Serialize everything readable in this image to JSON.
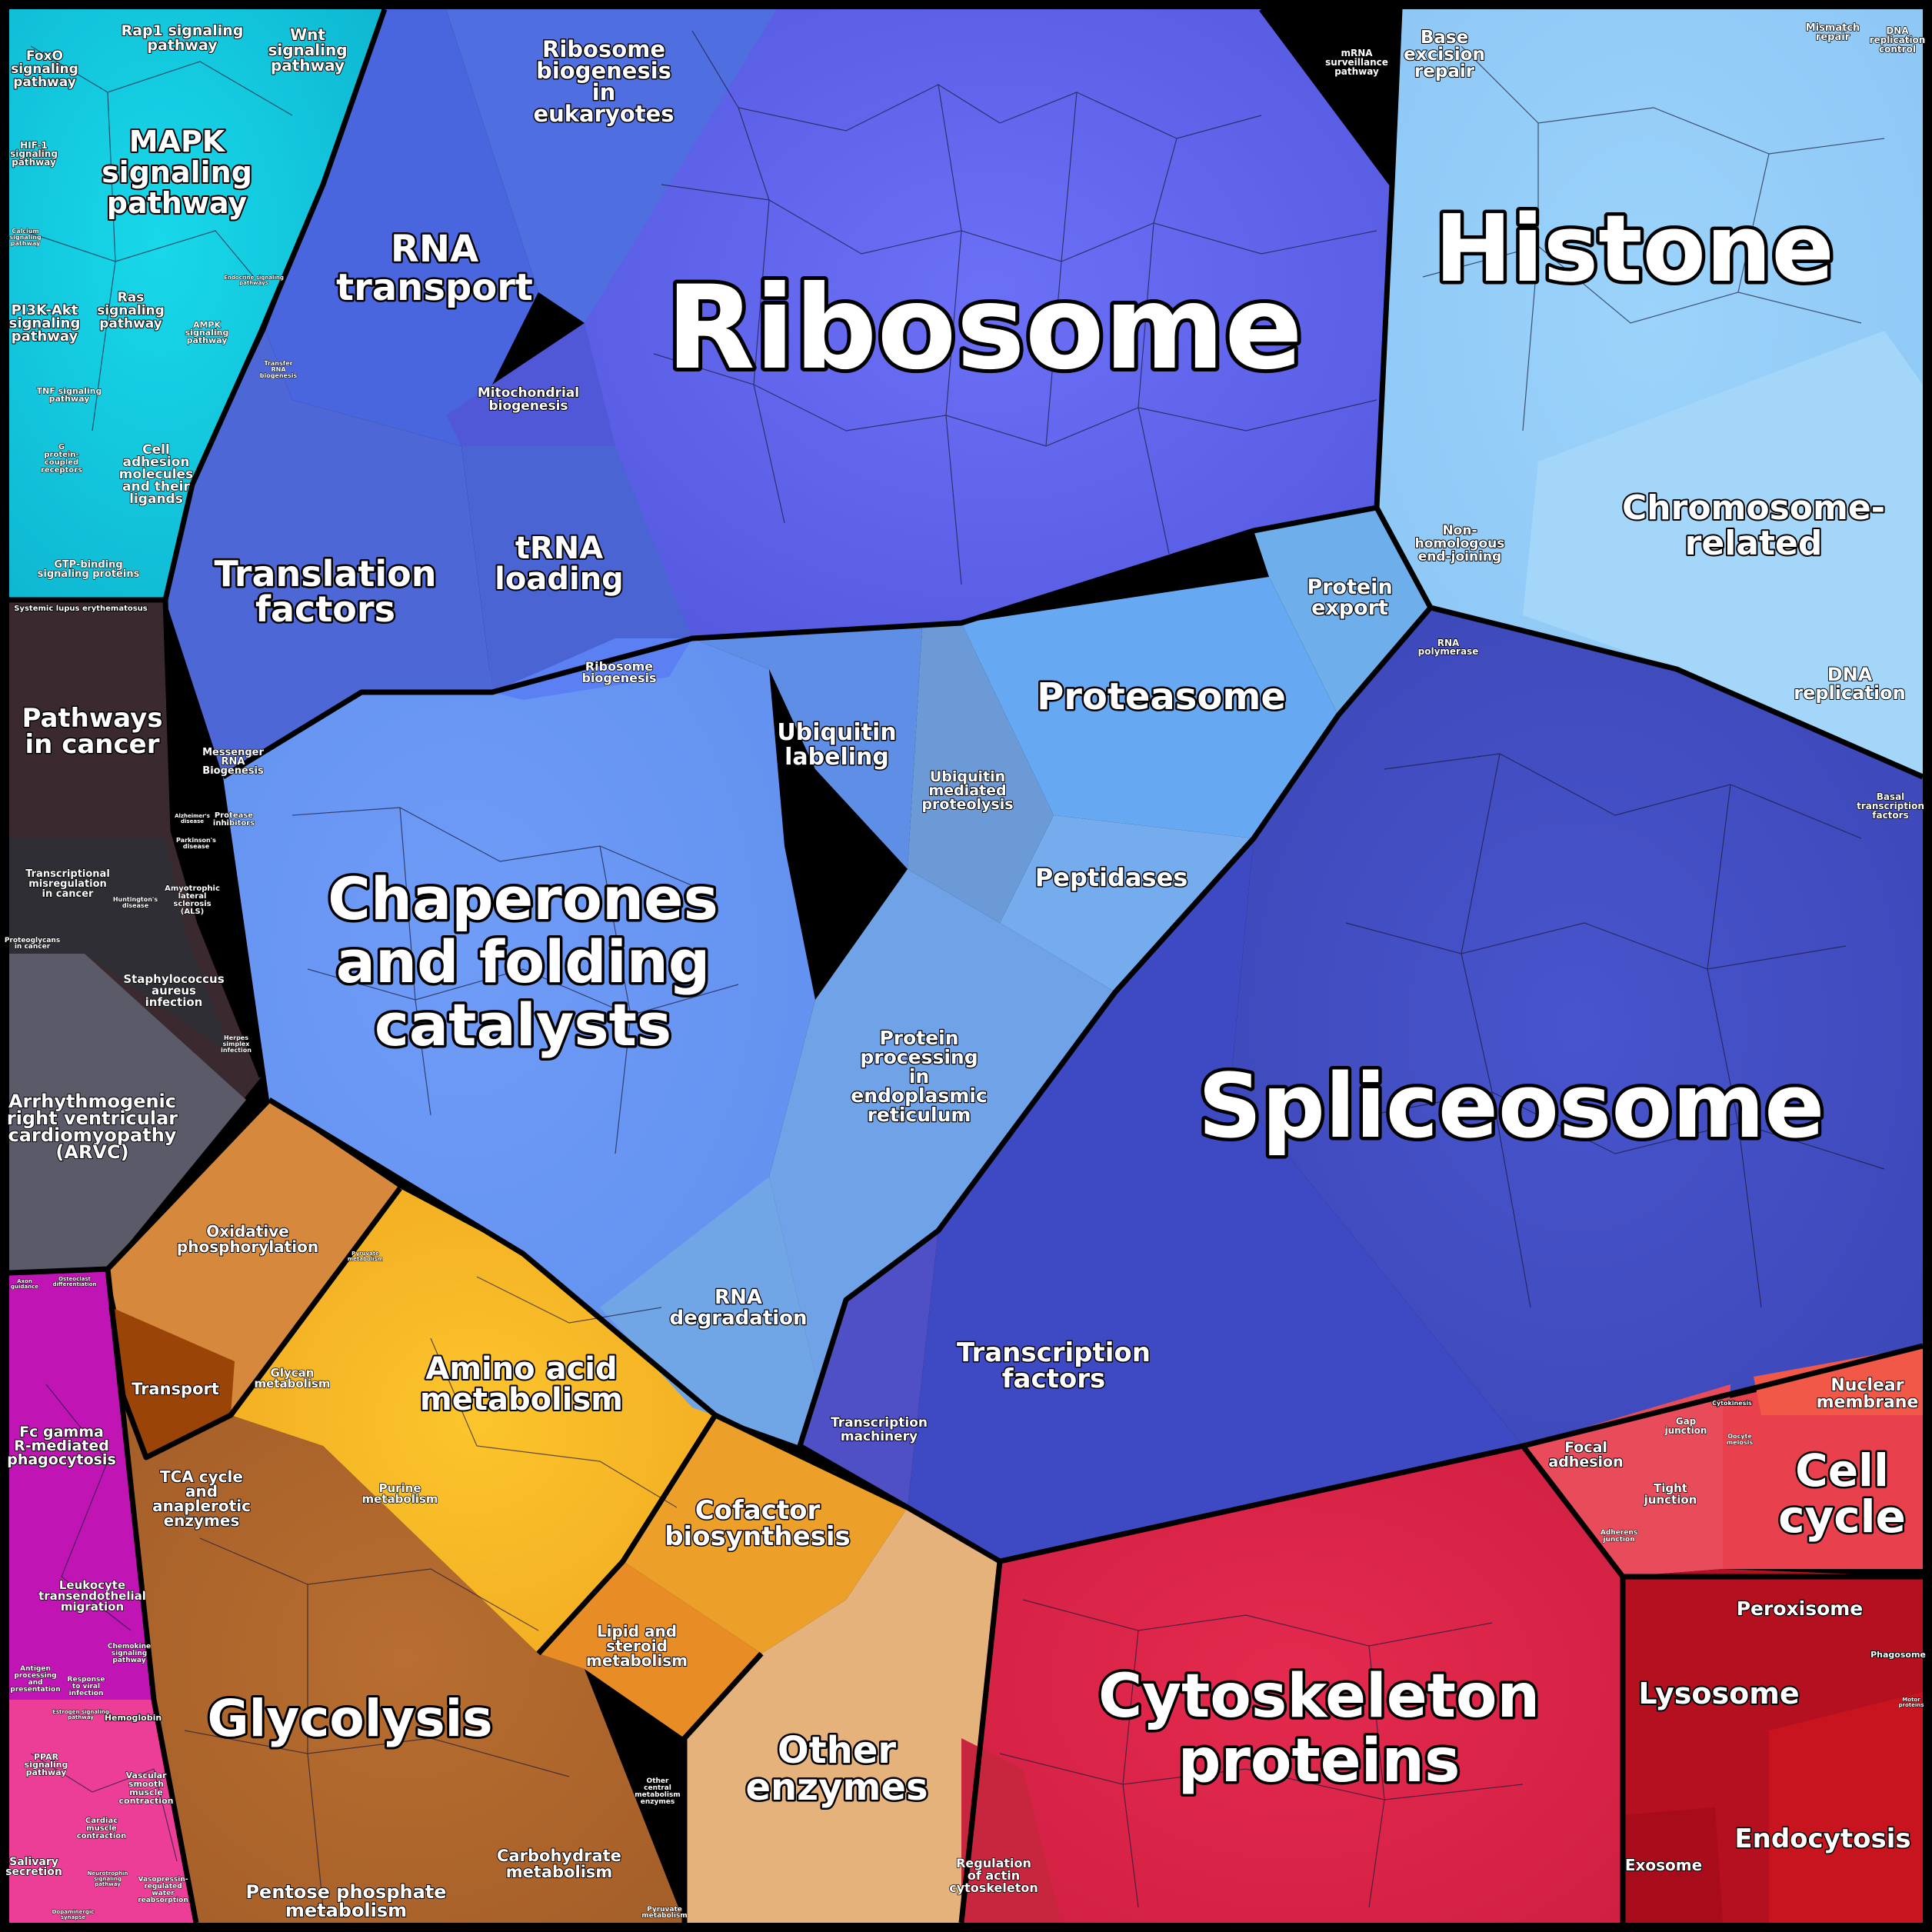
{
  "diagram": {
    "type": "voronoi-treemap",
    "labels": {
      "ribosome": "Ribosome",
      "histone": "Histone",
      "spliceosome": "Spliceosome",
      "chaperones": [
        "Chaperones",
        "and folding",
        "catalysts"
      ],
      "cytoskeleton": [
        "Cytoskeleton",
        "proteins"
      ],
      "glycolysis": "Glycolysis",
      "mapk": [
        "MAPK",
        "signaling",
        "pathway"
      ],
      "rna_transport": [
        "RNA",
        "transport"
      ],
      "translation_factors": [
        "Translation",
        "factors"
      ],
      "trna_loading": [
        "tRNA",
        "loading"
      ],
      "proteasome": "Proteasome",
      "peptidases": "Peptidases",
      "chromosome_related": [
        "Chromosome-",
        "related"
      ],
      "amino_acid_metabolism": [
        "Amino acid",
        "metabolism"
      ],
      "cofactor_biosynthesis": [
        "Cofactor",
        "biosynthesis"
      ],
      "other_enzymes": [
        "Other",
        "enzymes"
      ],
      "cell_cycle": [
        "Cell",
        "cycle"
      ],
      "lysosome": "Lysosome",
      "endocytosis": "Endocytosis",
      "peroxisome": "Peroxisome",
      "exosome": "Exosome",
      "nuclear_membrane": [
        "Nuclear",
        "membrane"
      ],
      "transcription_factors": [
        "Transcription",
        "factors"
      ],
      "transcription_machinery": [
        "Transcription",
        "machinery"
      ],
      "rna_degradation": [
        "RNA",
        "degradation"
      ],
      "protein_processing_er": [
        "Protein",
        "processing",
        "in",
        "endoplasmic",
        "reticulum"
      ],
      "ubiquitin_labeling": [
        "Ubiquitin",
        "labeling"
      ],
      "ubiquitin_mediated_proteolysis": [
        "Ubiquitin",
        "mediated",
        "proteolysis"
      ],
      "protein_export": [
        "Protein",
        "export"
      ],
      "ribosome_biogenesis_euk": [
        "Ribosome",
        "biogenesis",
        "in",
        "eukaryotes"
      ],
      "mitochondrial_biogenesis": [
        "Mitochondrial",
        "biogenesis"
      ],
      "ribosome_biogenesis": [
        "Ribosome",
        "biogenesis"
      ],
      "messenger_rna_biogenesis": [
        "Messenger",
        "RNA",
        "Biogenesis"
      ],
      "base_excision_repair": [
        "Base",
        "excision",
        "repair"
      ],
      "non_homologous_end_joining": [
        "Non-",
        "homologous",
        "end-joining"
      ],
      "dna_replication": [
        "DNA",
        "replication"
      ],
      "mismatch_repair": [
        "Mismatch",
        "repair"
      ],
      "dna_replication_control": [
        "DNA",
        "replication",
        "control"
      ],
      "mrna_surveillance": [
        "mRNA",
        "surveillance",
        "pathway"
      ],
      "rna_polymerase": [
        "RNA",
        "polymerase"
      ],
      "basal_transcription_factors": [
        "Basal",
        "transcription",
        "factors"
      ],
      "pathways_in_cancer": [
        "Pathways",
        "in cancer"
      ],
      "transcriptional_misregulation": [
        "Transcriptional",
        "misregulation",
        "in cancer"
      ],
      "als": [
        "Amyotrophic",
        "lateral",
        "sclerosis",
        "(ALS)"
      ],
      "huntingtons": [
        "Huntington's",
        "disease"
      ],
      "parkinsons": [
        "Parkinson's",
        "disease"
      ],
      "alzheimers": [
        "Alzheimer's",
        "disease"
      ],
      "proteoglycans": [
        "Proteoglycans",
        "in cancer"
      ],
      "staph_aureus": [
        "Staphylococcus",
        "aureus",
        "infection"
      ],
      "herpes": [
        "Herpes",
        "simplex",
        "infection"
      ],
      "arvc": [
        "Arrhythmogenic",
        "right ventricular",
        "cardiomyopathy",
        "(ARVC)"
      ],
      "systemic_lupus": "Systemic lupus erythematosus",
      "oxidative_phosphorylation": [
        "Oxidative",
        "phosphorylation"
      ],
      "pyruvate_metabolism": [
        "Pyruvate",
        "metabolism"
      ],
      "transport": "Transport",
      "glycan_metabolism": [
        "Glycan",
        "metabolism"
      ],
      "tca_cycle": [
        "TCA cycle",
        "and",
        "anaplerotic",
        "enzymes"
      ],
      "purine_metabolism": [
        "Purine",
        "metabolism"
      ],
      "lipid_steroid_metabolism": [
        "Lipid and",
        "steroid",
        "metabolism"
      ],
      "carbohydrate_metabolism": [
        "Carbohydrate",
        "metabolism"
      ],
      "pentose_phosphate": [
        "Pentose phosphate",
        "metabolism"
      ],
      "other_central_metabolism": [
        "Other",
        "central",
        "metabolism",
        "enzymes"
      ],
      "pyruvate_metabolism_2": [
        "Pyruvate",
        "metabolism"
      ],
      "regulation_actin": [
        "Regulation",
        "of actin",
        "cytoskeleton"
      ],
      "focal_adhesion": [
        "Focal",
        "adhesion"
      ],
      "gap_junction": [
        "Gap",
        "junction"
      ],
      "tight_junction": [
        "Tight",
        "junction"
      ],
      "adherens_junction": [
        "Adherens",
        "junction"
      ],
      "cytokinesis": "Cytokinesis",
      "oocyte_meiosis": [
        "Oocyte",
        "meiosis"
      ],
      "phagosome": "Phagosome",
      "motor_proteins": [
        "Motor",
        "proteins"
      ],
      "foxo": [
        "FoxO",
        "signaling",
        "pathway"
      ],
      "rap1": [
        "Rap1 signaling",
        "pathway"
      ],
      "wnt": [
        "Wnt",
        "signaling",
        "pathway"
      ],
      "hif1": [
        "HIF-1",
        "signaling",
        "pathway"
      ],
      "calcium": [
        "Calcium",
        "signaling",
        "pathway"
      ],
      "pi3k": [
        "PI3K-Akt",
        "signaling",
        "pathway"
      ],
      "ras": [
        "Ras",
        "signaling",
        "pathway"
      ],
      "ampk": [
        "AMPK",
        "signaling",
        "pathway"
      ],
      "tnf": [
        "TNF signaling",
        "pathway"
      ],
      "g_protein": [
        "G",
        "protein-",
        "coupled",
        "receptors"
      ],
      "cell_adhesion_molecules": [
        "Cell",
        "adhesion",
        "molecules",
        "and their",
        "ligands"
      ],
      "gtp_binding": [
        "GTP-binding",
        "signaling proteins"
      ],
      "endocrine_signaling": [
        "Endocrine signaling",
        "pathways"
      ],
      "transfer_rna_biogenesis": [
        "Transfer",
        "RNA",
        "biogenesis"
      ],
      "protease_inhibitors": [
        "Protease",
        "inhibitors"
      ],
      "fc_gamma": [
        "Fc gamma",
        "R-mediated",
        "phagocytosis"
      ],
      "leukocyte": [
        "Leukocyte",
        "transendothelial",
        "migration"
      ],
      "chemokine": [
        "Chemokine",
        "signaling",
        "pathway"
      ],
      "antigen": [
        "Antigen",
        "processing",
        "and",
        "presentation"
      ],
      "response_viral": [
        "Response",
        "to viral",
        "infection"
      ],
      "ppar": [
        "PPAR",
        "signaling",
        "pathway"
      ],
      "hemoglobin": "Hemoglobin",
      "vascular_smooth": [
        "Vascular",
        "smooth",
        "muscle",
        "contraction"
      ],
      "cardiac_muscle": [
        "Cardiac",
        "muscle",
        "contraction"
      ],
      "estrogen": [
        "Estrogen signaling",
        "pathway"
      ],
      "salivary": [
        "Salivary",
        "secretion"
      ],
      "neurotrophin": [
        "Neurotrophin",
        "signaling",
        "pathway"
      ],
      "vasopressin": [
        "Vasopressin-",
        "regulated",
        "water",
        "reabsorption"
      ],
      "dopaminergic": [
        "Dopaminergic",
        "synapse"
      ],
      "axon_guidance": [
        "Axon",
        "guidance"
      ],
      "osteoclast": [
        "Osteoclast",
        "differentiation"
      ]
    },
    "colors": {
      "background": "#000000",
      "ribosome": "#5f63ec",
      "ribosome_light": "#6a6ff5",
      "translation": "#5070dc",
      "histone": "#90cbf9",
      "histone_light": "#a5dafb",
      "spliceosome": "#4350c2",
      "spliceosome_light": "#4a58cf",
      "chaperones": "#6b97f4",
      "proteasome": "#66a6f2",
      "protein_er": "#6fa3e8",
      "signaling": "#10c6dd",
      "signaling_light": "#1ee6f0",
      "disease": "#3a2a30",
      "disease_gray": "#5a5a66",
      "energy": "#d68a3e",
      "amino_acid": "#f6b624",
      "cofactor": "#eda22a",
      "glycolysis": "#b46a2e",
      "other_enzymes": "#e4b27a",
      "cytoskeleton": "#e0274c",
      "cell_cycle": "#e84050",
      "lysosome": "#b8101e",
      "immune": "#c014b4",
      "immune_pink": "#ec3e96",
      "transcription": "#3b4ac0"
    }
  }
}
